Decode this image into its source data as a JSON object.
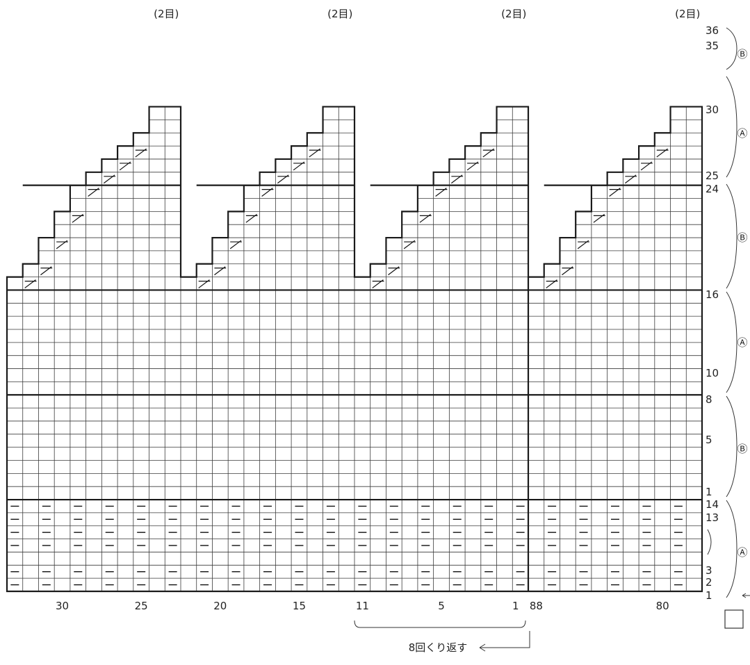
{
  "chart": {
    "type": "knitting-chart",
    "top_labels": [
      "(2目)",
      "(2目)",
      "(2目)",
      "(2目)"
    ],
    "right_row_labels": [
      "36",
      "35",
      "30",
      "25",
      "24",
      "16",
      "10",
      "8",
      "5",
      "1",
      "14",
      "13",
      "3",
      "2",
      "1"
    ],
    "section_labels": [
      "Ⓑ",
      "Ⓐ",
      "Ⓑ",
      "Ⓐ",
      "Ⓑ",
      "Ⓐ"
    ],
    "bottom_labels": [
      "30",
      "25",
      "20",
      "15",
      "11",
      "5",
      "1",
      "88",
      "80"
    ],
    "repeat_note": "8回くり返す",
    "decrease_symbol": "⅄",
    "purl_symbol": "—",
    "colors": {
      "grid": "#3a3a3a",
      "thick": "#1a1a1a",
      "background": "#ffffff"
    }
  }
}
